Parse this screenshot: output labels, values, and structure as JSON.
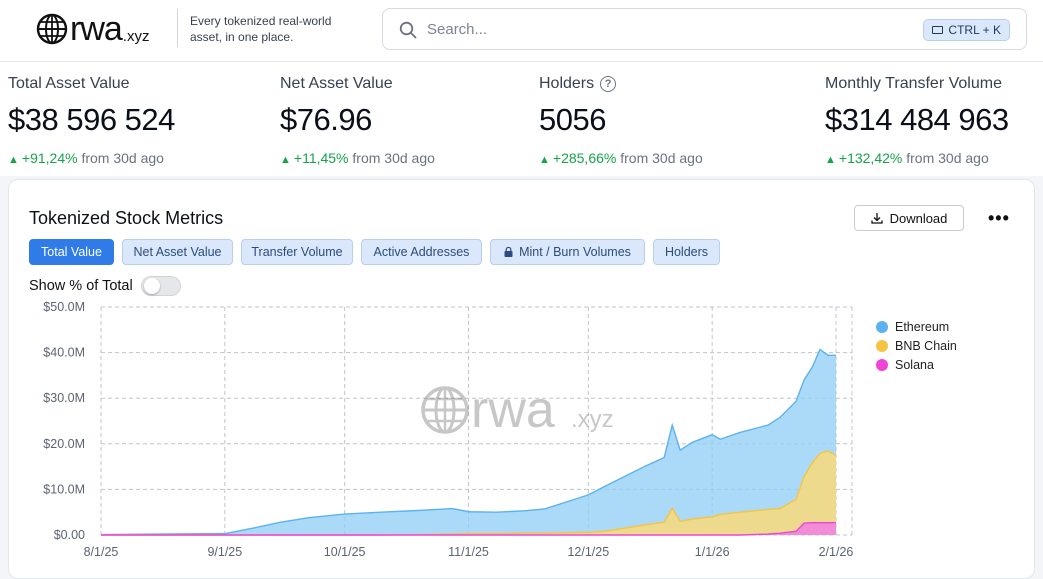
{
  "header": {
    "logo_text": "rwa",
    "logo_suffix": ".xyz",
    "tagline": "Every tokenized real-world asset, in one place.",
    "search_placeholder": "Search...",
    "shortcut": "CTRL + K"
  },
  "stats": [
    {
      "label": "Total Asset Value",
      "value": "$38 596 524",
      "change": "+91,24%",
      "period": "from 30d ago"
    },
    {
      "label": "Net Asset Value",
      "value": "$76.96",
      "change": "+11,45%",
      "period": "from 30d ago"
    },
    {
      "label": "Holders",
      "value": "5056",
      "change": "+285,66%",
      "period": "from 30d ago"
    },
    {
      "label": "Monthly Transfer Volume",
      "value": "$314 484 963",
      "change": "+132,42%",
      "period": "from 30d ago"
    }
  ],
  "card": {
    "title": "Tokenized Stock Metrics",
    "download_label": "Download",
    "more_label": "•••",
    "tabs": [
      {
        "label": "Total Value",
        "active": true
      },
      {
        "label": "Net Asset Value"
      },
      {
        "label": "Transfer Volume"
      },
      {
        "label": "Active Addresses"
      },
      {
        "label": "Mint / Burn Volumes",
        "locked": true
      },
      {
        "label": "Holders"
      }
    ],
    "toggle_label": "Show % of Total",
    "toggle_on": false
  },
  "colors": {
    "ethereum": "#5bb2ef",
    "bnb": "#f5c443",
    "solana": "#ee44d8",
    "accent": "#2f7be8",
    "positive": "#16a34a"
  },
  "chart_data": {
    "type": "area",
    "stacked": true,
    "watermark": "rwa.xyz",
    "y_ticks": [
      "$0.00",
      "$10.0M",
      "$20.0M",
      "$30.0M",
      "$40.0M",
      "$50.0M"
    ],
    "x_ticks": [
      "8/1/25",
      "9/1/25",
      "10/1/25",
      "11/1/25",
      "12/1/25",
      "1/1/26",
      "2/1/26"
    ],
    "ylim": [
      0,
      50
    ],
    "y_unit": "$M",
    "legend_position": "right",
    "grid": true,
    "x": [
      "2025-08-01",
      "2025-08-15",
      "2025-09-01",
      "2025-09-08",
      "2025-09-15",
      "2025-09-22",
      "2025-10-01",
      "2025-10-10",
      "2025-10-20",
      "2025-10-28",
      "2025-11-01",
      "2025-11-08",
      "2025-11-15",
      "2025-11-20",
      "2025-11-25",
      "2025-12-01",
      "2025-12-05",
      "2025-12-10",
      "2025-12-15",
      "2025-12-20",
      "2025-12-22",
      "2025-12-24",
      "2025-12-27",
      "2026-01-01",
      "2026-01-03",
      "2026-01-08",
      "2026-01-15",
      "2026-01-18",
      "2026-01-22",
      "2026-01-24",
      "2026-01-26",
      "2026-01-28",
      "2026-01-30",
      "2026-02-01"
    ],
    "series": [
      {
        "name": "Ethereum",
        "values": [
          0.1,
          0.2,
          0.3,
          1.5,
          2.8,
          3.8,
          4.6,
          5.0,
          5.3,
          5.6,
          4.8,
          4.7,
          4.9,
          5.3,
          6.6,
          8.2,
          9.8,
          11.3,
          12.8,
          14.2,
          18.2,
          15.6,
          16.8,
          18.0,
          16.5,
          17.5,
          18.5,
          20.0,
          21.5,
          21.2,
          21.0,
          22.8,
          21.0,
          21.9
        ]
      },
      {
        "name": "BNB Chain",
        "values": [
          0,
          0,
          0,
          0,
          0,
          0,
          0,
          0,
          0.1,
          0.2,
          0.3,
          0.3,
          0.4,
          0.4,
          0.5,
          0.6,
          0.8,
          1.5,
          2.2,
          2.8,
          5.9,
          3.0,
          3.5,
          4.0,
          4.5,
          5.0,
          5.4,
          5.4,
          7.0,
          10.2,
          13.0,
          15.2,
          15.7,
          14.8
        ]
      },
      {
        "name": "Solana",
        "values": [
          0,
          0,
          0,
          0,
          0,
          0,
          0,
          0,
          0,
          0,
          0,
          0,
          0,
          0,
          0,
          0,
          0,
          0,
          0,
          0,
          0,
          0,
          0,
          0,
          0,
          0,
          0.2,
          0.4,
          0.8,
          2.6,
          2.7,
          2.7,
          2.7,
          2.7
        ]
      }
    ]
  }
}
